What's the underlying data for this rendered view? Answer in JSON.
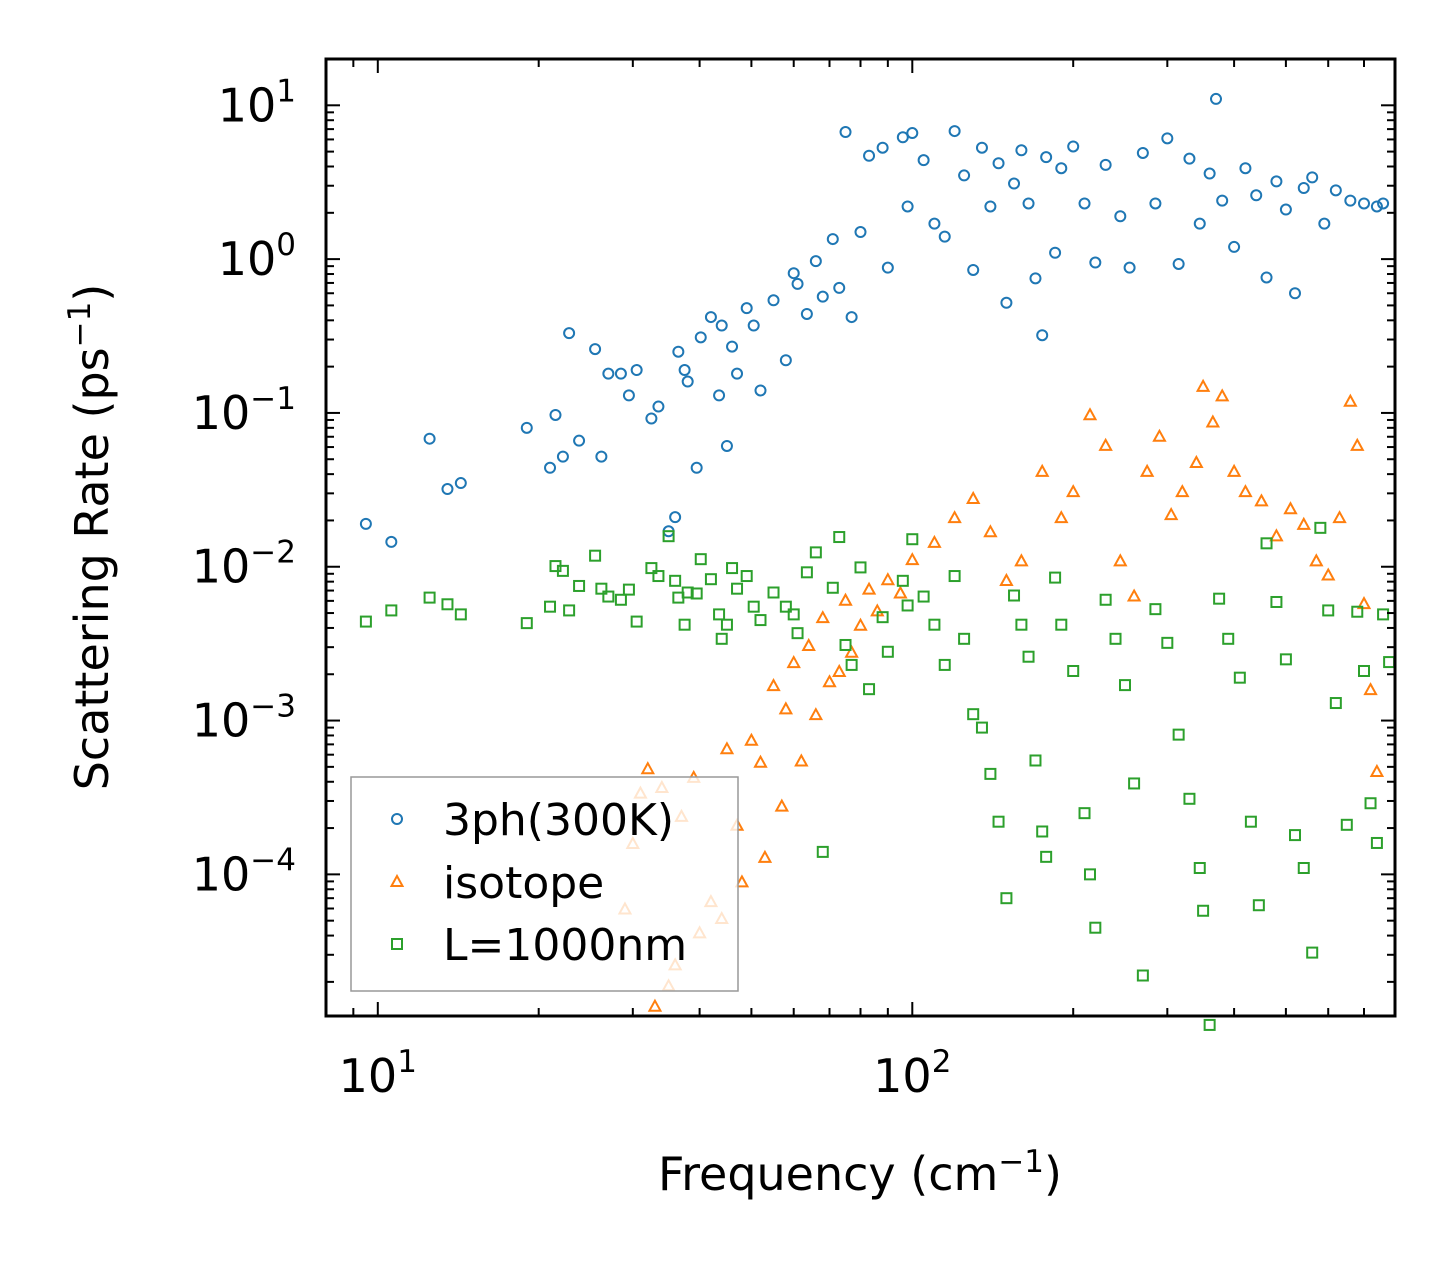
{
  "chart_data": {
    "type": "scatter",
    "xscale": "log",
    "yscale": "log",
    "xlim": [
      8,
      800
    ],
    "ylim": [
      1.2e-05,
      20
    ],
    "xlabel": "Frequency (cm⁻¹)",
    "xlabel_parts": {
      "main": "Frequency (cm",
      "sup": "−1",
      "end": ")"
    },
    "ylabel": "Scattering Rate (ps⁻¹)",
    "ylabel_parts": {
      "main": "Scattering Rate (ps",
      "sup": "−1",
      "end": ")"
    },
    "x_ticks": [
      {
        "value": 10,
        "base": "10",
        "exp": "1"
      },
      {
        "value": 100,
        "base": "10",
        "exp": "2"
      }
    ],
    "y_ticks": [
      {
        "value": 10,
        "base": "10",
        "exp": "1"
      },
      {
        "value": 1,
        "base": "10",
        "exp": "0"
      },
      {
        "value": 0.1,
        "base": "10",
        "exp": "−1"
      },
      {
        "value": 0.01,
        "base": "10",
        "exp": "−2"
      },
      {
        "value": 0.001,
        "base": "10",
        "exp": "−3"
      },
      {
        "value": 0.0001,
        "base": "10",
        "exp": "−4"
      }
    ],
    "legend_position": "bottom-left",
    "series": [
      {
        "name": "3ph(300K)",
        "marker": "circle",
        "color": "#1f77b4",
        "points": [
          [
            9.5,
            0.019
          ],
          [
            10.6,
            0.0145
          ],
          [
            12.5,
            0.068
          ],
          [
            13.5,
            0.032
          ],
          [
            14.3,
            0.035
          ],
          [
            19,
            0.08
          ],
          [
            21,
            0.044
          ],
          [
            21.5,
            0.097
          ],
          [
            22.2,
            0.052
          ],
          [
            22.8,
            0.33
          ],
          [
            23.8,
            0.066
          ],
          [
            25.5,
            0.26
          ],
          [
            26.2,
            0.052
          ],
          [
            27,
            0.18
          ],
          [
            28.5,
            0.18
          ],
          [
            29.5,
            0.13
          ],
          [
            30.5,
            0.19
          ],
          [
            32.5,
            0.092
          ],
          [
            33.5,
            0.11
          ],
          [
            35,
            0.017
          ],
          [
            36,
            0.021
          ],
          [
            36.5,
            0.25
          ],
          [
            37.5,
            0.19
          ],
          [
            38,
            0.16
          ],
          [
            39.5,
            0.044
          ],
          [
            40.2,
            0.31
          ],
          [
            42,
            0.42
          ],
          [
            43.5,
            0.13
          ],
          [
            44,
            0.37
          ],
          [
            45,
            0.061
          ],
          [
            46,
            0.27
          ],
          [
            47,
            0.18
          ],
          [
            49,
            0.48
          ],
          [
            50.5,
            0.37
          ],
          [
            52,
            0.14
          ],
          [
            55,
            0.54
          ],
          [
            58,
            0.22
          ],
          [
            60,
            0.81
          ],
          [
            61,
            0.69
          ],
          [
            63.5,
            0.44
          ],
          [
            66,
            0.97
          ],
          [
            68,
            0.57
          ],
          [
            71,
            1.35
          ],
          [
            73,
            0.65
          ],
          [
            75,
            6.7
          ],
          [
            77,
            0.42
          ],
          [
            80,
            1.5
          ],
          [
            83,
            4.7
          ],
          [
            88,
            5.3
          ],
          [
            90,
            0.88
          ],
          [
            96,
            6.2
          ],
          [
            98,
            2.2
          ],
          [
            100,
            6.6
          ],
          [
            105,
            4.4
          ],
          [
            110,
            1.7
          ],
          [
            115,
            1.4
          ],
          [
            120,
            6.8
          ],
          [
            125,
            3.5
          ],
          [
            130,
            0.85
          ],
          [
            135,
            5.3
          ],
          [
            140,
            2.2
          ],
          [
            145,
            4.2
          ],
          [
            150,
            0.52
          ],
          [
            155,
            3.1
          ],
          [
            160,
            5.1
          ],
          [
            165,
            2.3
          ],
          [
            170,
            0.75
          ],
          [
            175,
            0.32
          ],
          [
            178,
            4.6
          ],
          [
            185,
            1.1
          ],
          [
            190,
            3.9
          ],
          [
            200,
            5.4
          ],
          [
            210,
            2.3
          ],
          [
            220,
            0.95
          ],
          [
            230,
            4.1
          ],
          [
            245,
            1.9
          ],
          [
            255,
            0.88
          ],
          [
            270,
            4.9
          ],
          [
            285,
            2.3
          ],
          [
            300,
            6.1
          ],
          [
            315,
            0.93
          ],
          [
            330,
            4.5
          ],
          [
            345,
            1.7
          ],
          [
            360,
            3.6
          ],
          [
            370,
            11
          ],
          [
            380,
            2.4
          ],
          [
            400,
            1.2
          ],
          [
            420,
            3.9
          ],
          [
            440,
            2.6
          ],
          [
            460,
            0.76
          ],
          [
            480,
            3.2
          ],
          [
            500,
            2.1
          ],
          [
            520,
            0.6
          ],
          [
            540,
            2.9
          ],
          [
            560,
            3.4
          ],
          [
            590,
            1.7
          ],
          [
            620,
            2.8
          ],
          [
            660,
            2.4
          ],
          [
            700,
            2.3
          ],
          [
            740,
            2.2
          ],
          [
            760,
            2.3
          ]
        ]
      },
      {
        "name": "isotope",
        "marker": "triangle",
        "color": "#ff7f0e",
        "points": [
          [
            29,
            6e-05
          ],
          [
            30,
            0.00016
          ],
          [
            31,
            0.00034
          ],
          [
            32,
            0.00049
          ],
          [
            33,
            1.4e-05
          ],
          [
            34,
            0.00037
          ],
          [
            35,
            1.9e-05
          ],
          [
            36,
            2.6e-05
          ],
          [
            37,
            0.00024
          ],
          [
            39,
            0.00043
          ],
          [
            40,
            4.2e-05
          ],
          [
            42,
            6.7e-05
          ],
          [
            44,
            5.2e-05
          ],
          [
            45,
            0.00066
          ],
          [
            47,
            0.00021
          ],
          [
            48,
            9e-05
          ],
          [
            50,
            0.00075
          ],
          [
            52,
            0.00054
          ],
          [
            53,
            0.00013
          ],
          [
            55,
            0.0017
          ],
          [
            57,
            0.00028
          ],
          [
            58,
            0.0012
          ],
          [
            60,
            0.0024
          ],
          [
            62,
            0.00055
          ],
          [
            64,
            0.0031
          ],
          [
            66,
            0.0011
          ],
          [
            68,
            0.0047
          ],
          [
            70,
            0.0018
          ],
          [
            73,
            0.0021
          ],
          [
            75,
            0.0061
          ],
          [
            77,
            0.0028
          ],
          [
            80,
            0.0042
          ],
          [
            83,
            0.0072
          ],
          [
            86,
            0.0052
          ],
          [
            90,
            0.0083
          ],
          [
            95,
            0.0068
          ],
          [
            100,
            0.0112
          ],
          [
            110,
            0.0145
          ],
          [
            120,
            0.021
          ],
          [
            130,
            0.028
          ],
          [
            140,
            0.017
          ],
          [
            150,
            0.0082
          ],
          [
            160,
            0.011
          ],
          [
            175,
            0.042
          ],
          [
            190,
            0.021
          ],
          [
            200,
            0.031
          ],
          [
            215,
            0.098
          ],
          [
            230,
            0.062
          ],
          [
            245,
            0.011
          ],
          [
            260,
            0.0065
          ],
          [
            275,
            0.042
          ],
          [
            290,
            0.071
          ],
          [
            305,
            0.022
          ],
          [
            320,
            0.031
          ],
          [
            340,
            0.048
          ],
          [
            350,
            0.15
          ],
          [
            365,
            0.088
          ],
          [
            380,
            0.13
          ],
          [
            400,
            0.042
          ],
          [
            420,
            0.031
          ],
          [
            450,
            0.027
          ],
          [
            480,
            0.016
          ],
          [
            510,
            0.024
          ],
          [
            540,
            0.019
          ],
          [
            570,
            0.011
          ],
          [
            600,
            0.0089
          ],
          [
            630,
            0.021
          ],
          [
            660,
            0.12
          ],
          [
            680,
            0.062
          ],
          [
            700,
            0.0058
          ],
          [
            720,
            0.0016
          ],
          [
            740,
            0.00047
          ]
        ]
      },
      {
        "name": "L=1000nm",
        "marker": "square",
        "color": "#2ca02c",
        "points": [
          [
            9.5,
            0.0044
          ],
          [
            10.6,
            0.0052
          ],
          [
            12.5,
            0.0063
          ],
          [
            13.5,
            0.0057
          ],
          [
            14.3,
            0.0049
          ],
          [
            19,
            0.0043
          ],
          [
            21,
            0.0055
          ],
          [
            21.5,
            0.0101
          ],
          [
            22.2,
            0.0094
          ],
          [
            22.8,
            0.0052
          ],
          [
            23.8,
            0.0075
          ],
          [
            25.5,
            0.0118
          ],
          [
            26.2,
            0.0072
          ],
          [
            27,
            0.0064
          ],
          [
            28.5,
            0.0061
          ],
          [
            29.5,
            0.0071
          ],
          [
            30.5,
            0.0044
          ],
          [
            32.5,
            0.0098
          ],
          [
            33.5,
            0.0087
          ],
          [
            35,
            0.0158
          ],
          [
            36,
            0.0081
          ],
          [
            36.5,
            0.0063
          ],
          [
            37.5,
            0.0042
          ],
          [
            38,
            0.0068
          ],
          [
            39.5,
            0.0067
          ],
          [
            40.2,
            0.0112
          ],
          [
            42,
            0.0083
          ],
          [
            43.5,
            0.0049
          ],
          [
            44,
            0.0034
          ],
          [
            45,
            0.0042
          ],
          [
            46,
            0.0098
          ],
          [
            47,
            0.0072
          ],
          [
            49,
            0.0087
          ],
          [
            50.5,
            0.0055
          ],
          [
            52,
            0.0045
          ],
          [
            55,
            0.0068
          ],
          [
            58,
            0.0055
          ],
          [
            60,
            0.0049
          ],
          [
            61,
            0.0037
          ],
          [
            63.5,
            0.0092
          ],
          [
            66,
            0.0124
          ],
          [
            68,
            0.00014
          ],
          [
            71,
            0.0073
          ],
          [
            73,
            0.0156
          ],
          [
            75,
            0.0031
          ],
          [
            77,
            0.0023
          ],
          [
            80,
            0.0099
          ],
          [
            83,
            0.0016
          ],
          [
            88,
            0.0047
          ],
          [
            90,
            0.0028
          ],
          [
            96,
            0.0081
          ],
          [
            98,
            0.0056
          ],
          [
            100,
            0.0151
          ],
          [
            105,
            0.0064
          ],
          [
            110,
            0.0042
          ],
          [
            115,
            0.0023
          ],
          [
            120,
            0.0087
          ],
          [
            125,
            0.0034
          ],
          [
            130,
            0.0011
          ],
          [
            135,
            0.0009
          ],
          [
            140,
            0.00045
          ],
          [
            145,
            0.00022
          ],
          [
            150,
            7e-05
          ],
          [
            155,
            0.0065
          ],
          [
            160,
            0.0042
          ],
          [
            165,
            0.0026
          ],
          [
            170,
            0.00055
          ],
          [
            175,
            0.00019
          ],
          [
            178,
            0.00013
          ],
          [
            185,
            0.0085
          ],
          [
            190,
            0.0042
          ],
          [
            200,
            0.0021
          ],
          [
            210,
            0.00025
          ],
          [
            215,
            0.0001
          ],
          [
            220,
            4.5e-05
          ],
          [
            230,
            0.0061
          ],
          [
            240,
            0.0034
          ],
          [
            250,
            0.0017
          ],
          [
            260,
            0.00039
          ],
          [
            270,
            2.2e-05
          ],
          [
            285,
            0.0053
          ],
          [
            300,
            0.0032
          ],
          [
            315,
            0.00081
          ],
          [
            330,
            0.00031
          ],
          [
            345,
            0.00011
          ],
          [
            350,
            5.8e-05
          ],
          [
            360,
            1.05e-05
          ],
          [
            375,
            0.0062
          ],
          [
            390,
            0.0034
          ],
          [
            410,
            0.0019
          ],
          [
            430,
            0.00022
          ],
          [
            445,
            6.3e-05
          ],
          [
            460,
            0.0142
          ],
          [
            480,
            0.0059
          ],
          [
            500,
            0.0025
          ],
          [
            520,
            0.00018
          ],
          [
            540,
            0.00011
          ],
          [
            560,
            3.1e-05
          ],
          [
            580,
            0.0179
          ],
          [
            600,
            0.0052
          ],
          [
            620,
            0.0013
          ],
          [
            650,
            0.00021
          ],
          [
            680,
            0.0051
          ],
          [
            700,
            0.0021
          ],
          [
            720,
            0.00029
          ],
          [
            740,
            0.00016
          ],
          [
            760,
            0.0049
          ],
          [
            780,
            0.0024
          ]
        ]
      }
    ]
  }
}
